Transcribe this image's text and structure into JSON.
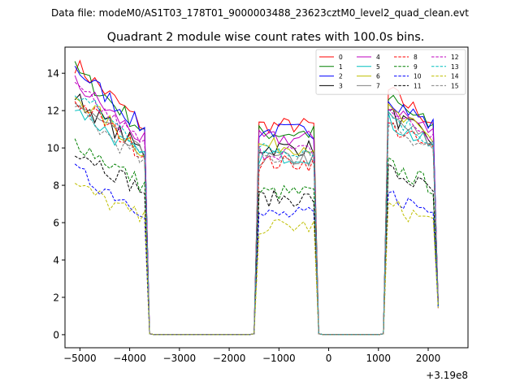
{
  "chart_data": {
    "type": "line",
    "suptitle": "Data file: modeM0/AS1T03_178T01_9000003488_23623cztM0_level2_quad_clean.evt",
    "title": "Quadrant 2 module wise count rates with 100.0s bins.",
    "xlabel": "",
    "ylabel": "",
    "x_offset_label": "+3.19e8",
    "xlim": [
      -5300,
      2800
    ],
    "ylim": [
      -0.7,
      15.4
    ],
    "x_ticks": [
      -5000,
      -4000,
      -3000,
      -2000,
      -1000,
      0,
      1000,
      2000
    ],
    "x_tick_labels": [
      "−5000",
      "−4000",
      "−3000",
      "−2000",
      "−1000",
      "0",
      "1000",
      "2000"
    ],
    "y_ticks": [
      0,
      2,
      4,
      6,
      8,
      10,
      12,
      14
    ],
    "y_tick_labels": [
      "0",
      "2",
      "4",
      "6",
      "8",
      "10",
      "12",
      "14"
    ],
    "legend_position": "top-right",
    "legend_columns": 4,
    "segments": [
      [
        -5100,
        -3600
      ],
      [
        -1500,
        -200
      ],
      [
        1100,
        2200
      ]
    ],
    "zero_ranges": [
      [
        -3600,
        -1500
      ],
      [
        -200,
        1100
      ]
    ],
    "series": [
      {
        "name": "0",
        "color": "#ff0000",
        "dash": "solid",
        "level": 14.5,
        "level2": 11.2,
        "level3": 13.2
      },
      {
        "name": "1",
        "color": "#008000",
        "dash": "solid",
        "level": 14.2,
        "level2": 10.8,
        "level3": 12.8
      },
      {
        "name": "2",
        "color": "#0000ff",
        "dash": "solid",
        "level": 14.3,
        "level2": 10.9,
        "level3": 12.9
      },
      {
        "name": "3",
        "color": "#000000",
        "dash": "solid",
        "level": 12.7,
        "level2": 10.0,
        "level3": 12.0
      },
      {
        "name": "4",
        "color": "#bf00bf",
        "dash": "solid",
        "level": 13.5,
        "level2": 10.5,
        "level3": 12.5
      },
      {
        "name": "5",
        "color": "#00bfbf",
        "dash": "solid",
        "level": 12.2,
        "level2": 9.6,
        "level3": 11.6
      },
      {
        "name": "6",
        "color": "#bfbf00",
        "dash": "solid",
        "level": 12.8,
        "level2": 10.1,
        "level3": 12.1
      },
      {
        "name": "7",
        "color": "#808080",
        "dash": "solid",
        "level": 12.4,
        "level2": 9.4,
        "level3": 11.8
      },
      {
        "name": "8",
        "color": "#ff0000",
        "dash": "dashed",
        "level": 12.6,
        "level2": 9.2,
        "level3": 11.4
      },
      {
        "name": "9",
        "color": "#008000",
        "dash": "dashed",
        "level": 10.4,
        "level2": 7.6,
        "level3": 9.2
      },
      {
        "name": "10",
        "color": "#0000ff",
        "dash": "dashed",
        "level": 8.7,
        "level2": 6.4,
        "level3": 7.6
      },
      {
        "name": "11",
        "color": "#000000",
        "dash": "dashed",
        "level": 10.0,
        "level2": 7.3,
        "level3": 8.9
      },
      {
        "name": "12",
        "color": "#bf00bf",
        "dash": "dashed",
        "level": 13.2,
        "level2": 9.8,
        "level3": 12.2
      },
      {
        "name": "13",
        "color": "#00bfbf",
        "dash": "dashed",
        "level": 13.0,
        "level2": 9.9,
        "level3": 12.0
      },
      {
        "name": "14",
        "color": "#bfbf00",
        "dash": "dashed",
        "level": 8.0,
        "level2": 5.8,
        "level3": 7.0
      },
      {
        "name": "15",
        "color": "#808080",
        "dash": "dashed",
        "level": 12.0,
        "level2": 9.5,
        "level3": 11.5
      }
    ]
  }
}
